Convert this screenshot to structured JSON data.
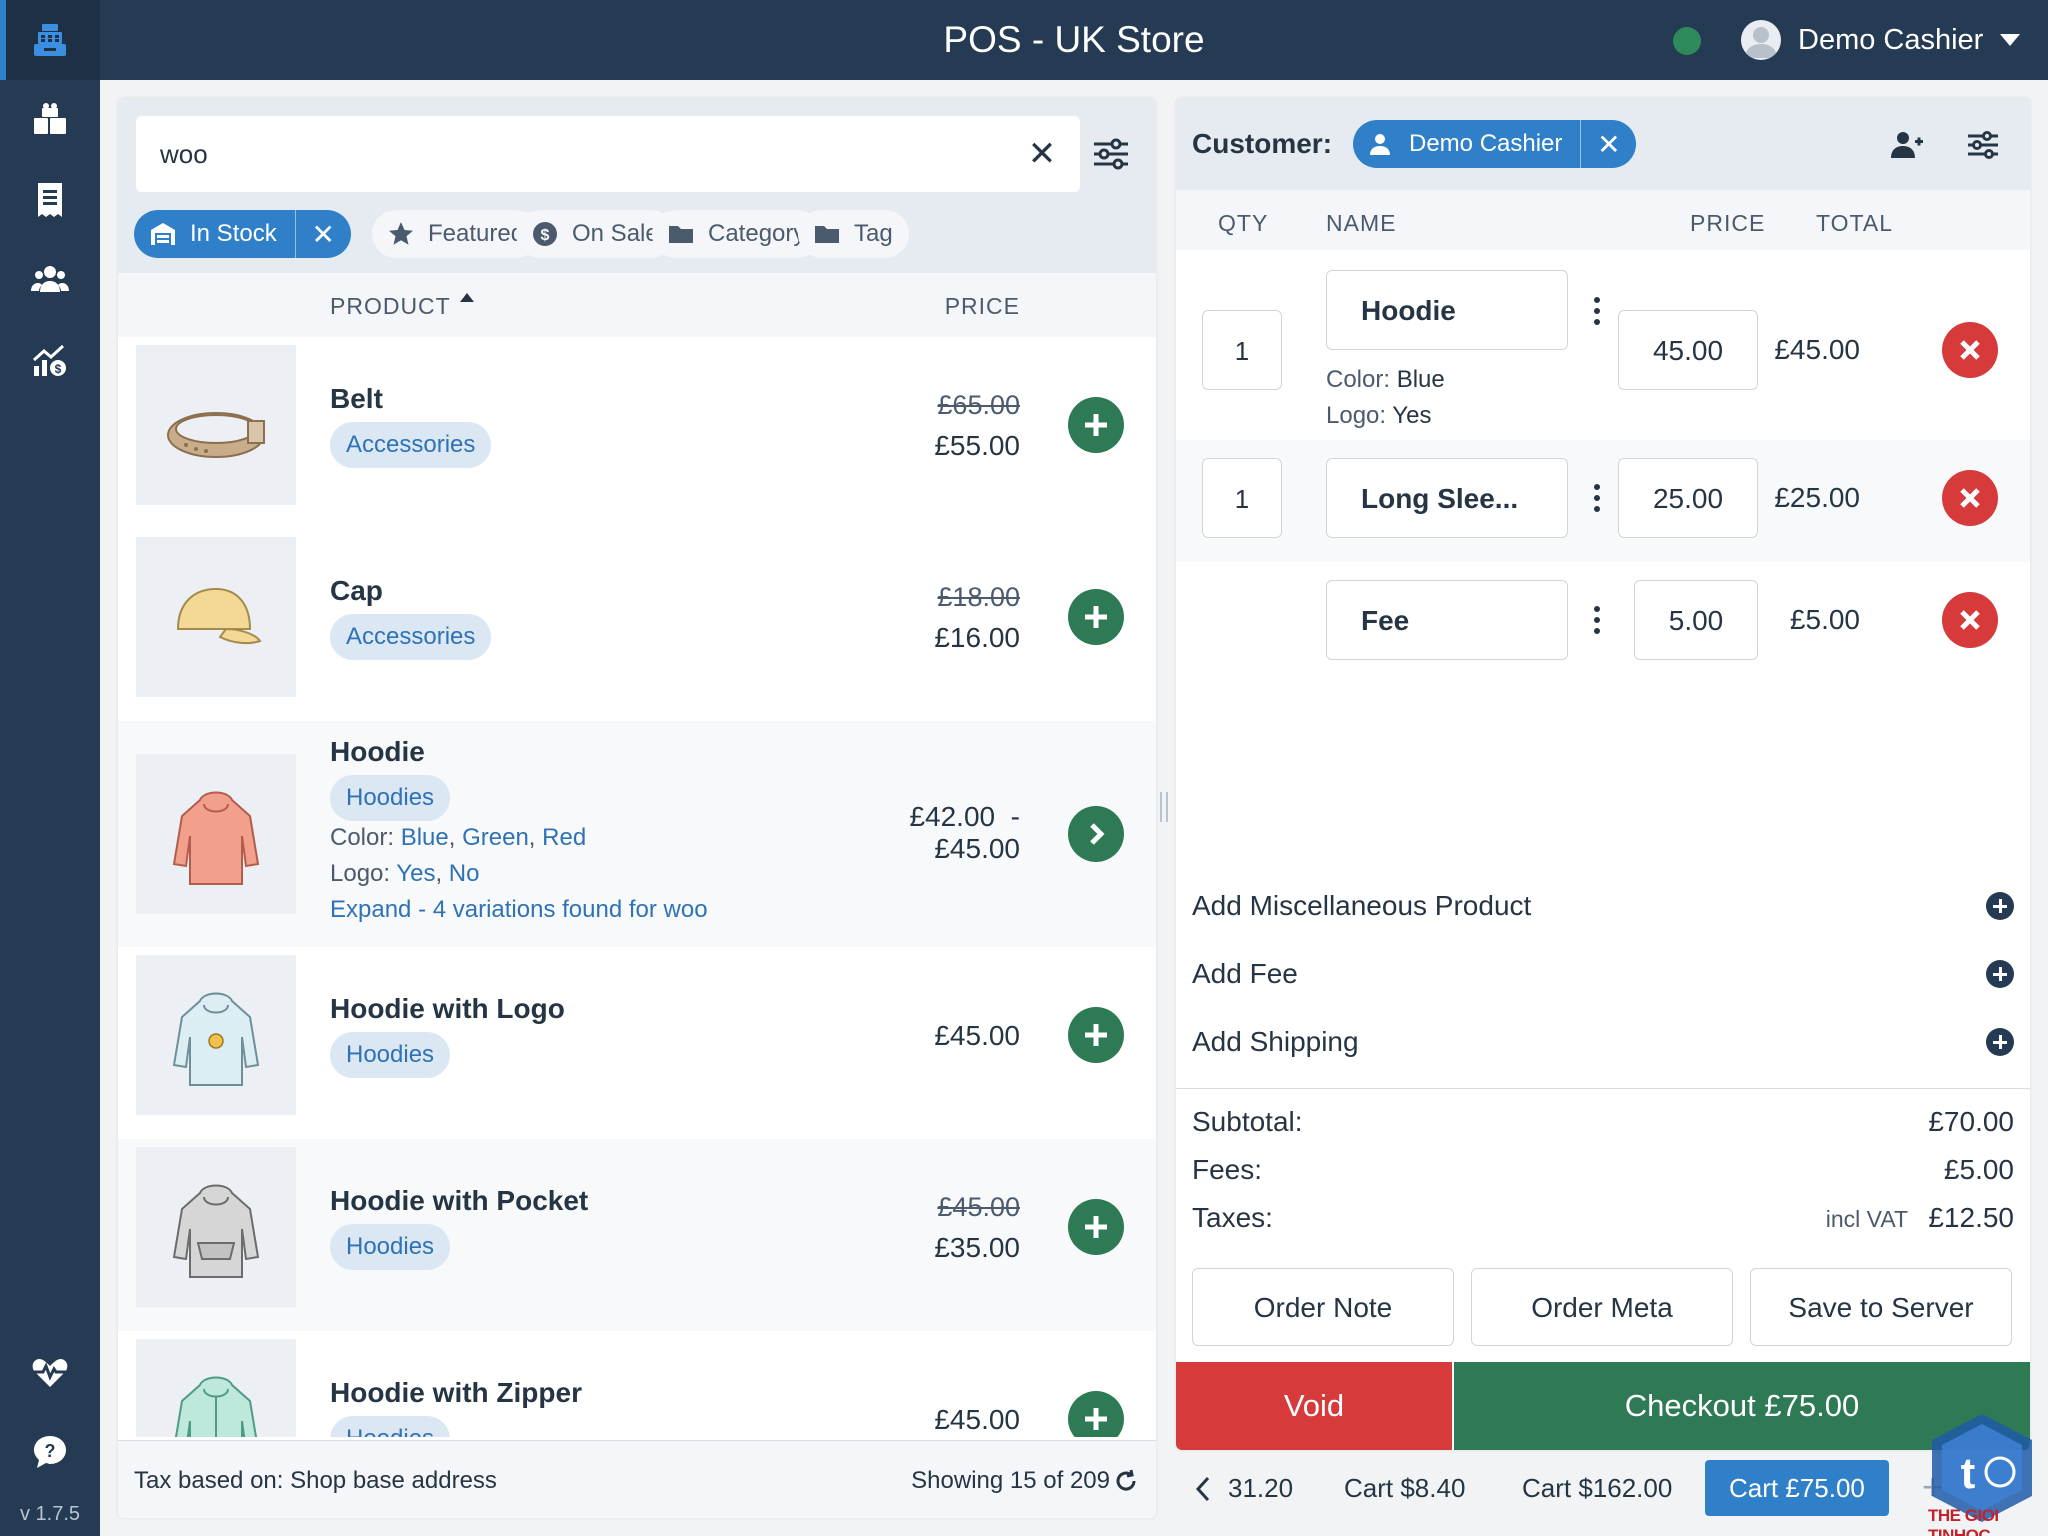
{
  "app": {
    "title": "POS - UK Store",
    "version": "v 1.7.5",
    "user_name": "Demo Cashier",
    "status": "online"
  },
  "sidebar": {
    "items": [
      {
        "icon": "cash-register-icon",
        "label": "POS",
        "active": true
      },
      {
        "icon": "products-icon",
        "label": "Products",
        "active": false
      },
      {
        "icon": "orders-icon",
        "label": "Orders",
        "active": false
      },
      {
        "icon": "customers-icon",
        "label": "Customers",
        "active": false
      },
      {
        "icon": "reports-icon",
        "label": "Reports",
        "active": false
      }
    ],
    "bottom": [
      {
        "icon": "heartbeat-icon",
        "label": "Logs"
      },
      {
        "icon": "help-icon",
        "label": "Support"
      }
    ]
  },
  "products": {
    "search_value": "woo",
    "filters": {
      "in_stock": "In Stock",
      "featured": "Featured",
      "on_sale": "On Sale",
      "category": "Category",
      "tag": "Tag"
    },
    "columns": {
      "product": "PRODUCT",
      "price": "PRICE"
    },
    "rows": [
      {
        "name": "Belt",
        "category": "Accessories",
        "regular_price": "£65.00",
        "price": "£55.00"
      },
      {
        "name": "Cap",
        "category": "Accessories",
        "regular_price": "£18.00",
        "price": "£16.00"
      },
      {
        "name": "Hoodie",
        "category": "Hoodies",
        "price_from": "£42.00",
        "price_sep": "-",
        "price_to": "£45.00",
        "attr_color_label": "Color:",
        "attr_colors": [
          "Blue",
          "Green",
          "Red"
        ],
        "attr_logo_label": "Logo:",
        "attr_logos": [
          "Yes",
          "No"
        ],
        "expand": "Expand - 4 variations found for woo"
      },
      {
        "name": "Hoodie with Logo",
        "category": "Hoodies",
        "price": "£45.00"
      },
      {
        "name": "Hoodie with Pocket",
        "category": "Hoodies",
        "regular_price": "£45.00",
        "price": "£35.00"
      },
      {
        "name": "Hoodie with Zipper",
        "category": "Hoodies",
        "price": "£45.00"
      }
    ],
    "footer": {
      "tax_note": "Tax based on: Shop base address",
      "showing": "Showing 15 of 209"
    }
  },
  "cart": {
    "customer_label": "Customer:",
    "customer_name": "Demo Cashier",
    "columns": {
      "qty": "QTY",
      "name": "NAME",
      "price": "PRICE",
      "total": "TOTAL"
    },
    "lines": [
      {
        "qty": "1",
        "name": "Hoodie",
        "price": "45.00",
        "total": "£45.00",
        "meta_color_label": "Color:",
        "meta_color": "Blue",
        "meta_logo_label": "Logo:",
        "meta_logo": "Yes"
      },
      {
        "qty": "1",
        "name": "Long Slee...",
        "price": "25.00",
        "total": "£25.00"
      },
      {
        "name": "Fee",
        "price": "5.00",
        "total": "£5.00"
      }
    ],
    "add_misc": "Add Miscellaneous Product",
    "add_fee": "Add Fee",
    "add_shipping": "Add Shipping",
    "totals": {
      "subtotal_label": "Subtotal:",
      "subtotal": "£70.00",
      "fees_label": "Fees:",
      "fees": "£5.00",
      "taxes_label": "Taxes:",
      "taxes_note": "incl VAT",
      "taxes": "£12.50"
    },
    "buttons": {
      "order_note": "Order Note",
      "order_meta": "Order Meta",
      "save_to_server": "Save to Server",
      "void": "Void",
      "checkout": "Checkout £75.00"
    },
    "tabs": [
      {
        "label": "31.20",
        "active": false
      },
      {
        "label": "Cart $8.40",
        "active": false
      },
      {
        "label": "Cart $162.00",
        "active": false
      },
      {
        "label": "Cart £75.00",
        "active": true
      }
    ]
  },
  "watermark": {
    "text": "THE GIOI TINHOC"
  },
  "colors": {
    "sidebar": "#243b53",
    "accent": "#2f80c9",
    "success": "#2e7a55",
    "danger": "#d73a3a"
  }
}
